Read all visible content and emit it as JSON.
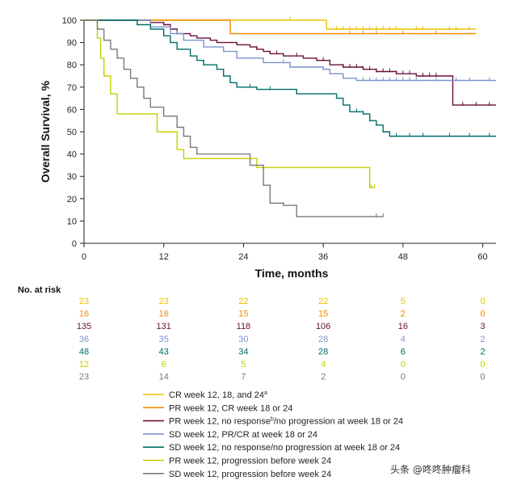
{
  "chart_data": {
    "type": "line",
    "subtype": "kaplan-meier",
    "title": "",
    "xlabel": "Time, months",
    "ylabel": "Overall Survival, %",
    "xlim": [
      0,
      62
    ],
    "ylim": [
      0,
      100
    ],
    "xticks": [
      0,
      12,
      24,
      36,
      48,
      60
    ],
    "yticks": [
      0,
      10,
      20,
      30,
      40,
      50,
      60,
      70,
      80,
      90,
      100
    ],
    "grid": false,
    "risk_table_title": "No. at risk",
    "risk_times": [
      0,
      12,
      24,
      36,
      48,
      60
    ],
    "series": [
      {
        "name": "CR week 12, 18, and 24",
        "superscript": "a",
        "color": "#e8c200",
        "steps": [
          [
            0,
            100
          ],
          [
            36.5,
            96
          ],
          [
            59,
            96
          ]
        ],
        "censor_times": [
          31,
          38,
          39,
          40,
          41,
          42,
          43,
          44,
          45,
          46,
          47,
          50,
          51,
          55,
          56,
          58
        ],
        "at_risk": [
          23,
          23,
          22,
          22,
          5,
          0
        ]
      },
      {
        "name": "PR week 12, CR week 18 or 24",
        "superscript": "",
        "color": "#f08a00",
        "steps": [
          [
            0,
            100
          ],
          [
            22,
            94
          ],
          [
            59,
            94
          ]
        ],
        "censor_times": [
          40,
          42,
          44,
          48,
          53
        ],
        "at_risk": [
          16,
          16,
          15,
          15,
          2,
          0
        ]
      },
      {
        "name": "PR week 12, no response",
        "superscript": "b",
        "name_suffix": "/no progression at week 18 or 24",
        "color": "#6b0f3a",
        "steps": [
          [
            0,
            100
          ],
          [
            10,
            99
          ],
          [
            12,
            98
          ],
          [
            13,
            96
          ],
          [
            14,
            94
          ],
          [
            16,
            93
          ],
          [
            17,
            92
          ],
          [
            19,
            91
          ],
          [
            20,
            90
          ],
          [
            23,
            89
          ],
          [
            25,
            88
          ],
          [
            26,
            87
          ],
          [
            27,
            86
          ],
          [
            28,
            85
          ],
          [
            30,
            84
          ],
          [
            33,
            83
          ],
          [
            35,
            82
          ],
          [
            37,
            80
          ],
          [
            39,
            79
          ],
          [
            42,
            78
          ],
          [
            44,
            77
          ],
          [
            47,
            76
          ],
          [
            50,
            75
          ],
          [
            55.5,
            62
          ],
          [
            62,
            62
          ]
        ],
        "censor_times": [
          26,
          29,
          32,
          36,
          39,
          40,
          41,
          42,
          43,
          44,
          45,
          46,
          47,
          48,
          49,
          51,
          52,
          53,
          57,
          59,
          61
        ],
        "at_risk": [
          135,
          131,
          118,
          106,
          16,
          3
        ]
      },
      {
        "name": "SD week 12, PR/CR at week 18 or 24",
        "superscript": "",
        "color": "#7b93c9",
        "steps": [
          [
            0,
            100
          ],
          [
            10,
            97
          ],
          [
            13,
            94
          ],
          [
            15,
            91
          ],
          [
            18,
            88
          ],
          [
            21,
            86
          ],
          [
            23,
            83
          ],
          [
            27,
            81
          ],
          [
            31,
            79
          ],
          [
            36,
            78
          ],
          [
            37,
            76
          ],
          [
            39,
            74
          ],
          [
            41,
            73
          ],
          [
            62,
            73
          ]
        ],
        "censor_times": [
          14,
          21,
          30,
          36,
          42,
          43,
          44,
          45,
          46,
          47,
          48,
          49,
          50,
          53,
          56,
          58,
          61
        ],
        "at_risk": [
          36,
          35,
          30,
          28,
          4,
          2
        ]
      },
      {
        "name": "SD week 12, no response/no progression at week 18 or 24",
        "superscript": "",
        "color": "#006c6a",
        "steps": [
          [
            0,
            100
          ],
          [
            8,
            98
          ],
          [
            10,
            96
          ],
          [
            12,
            93
          ],
          [
            13,
            90
          ],
          [
            14,
            87
          ],
          [
            16,
            84
          ],
          [
            17,
            82
          ],
          [
            18,
            80
          ],
          [
            20,
            78
          ],
          [
            21,
            75
          ],
          [
            22,
            72
          ],
          [
            23,
            70
          ],
          [
            26,
            69
          ],
          [
            32,
            67
          ],
          [
            38,
            65
          ],
          [
            39,
            62
          ],
          [
            40,
            59
          ],
          [
            42,
            58
          ],
          [
            43,
            55
          ],
          [
            44,
            53
          ],
          [
            45,
            50
          ],
          [
            46,
            48
          ],
          [
            62,
            48
          ]
        ],
        "censor_times": [
          18,
          25,
          28,
          41,
          42,
          43,
          44,
          45,
          47,
          49,
          51,
          55,
          58,
          61
        ],
        "at_risk": [
          48,
          43,
          34,
          28,
          6,
          2
        ]
      },
      {
        "name": "PR week 12, progression before week 24",
        "superscript": "",
        "color": "#c5d000",
        "steps": [
          [
            0,
            100
          ],
          [
            2,
            92
          ],
          [
            2.5,
            83
          ],
          [
            3,
            75
          ],
          [
            4,
            67
          ],
          [
            5,
            58
          ],
          [
            11,
            50
          ],
          [
            14,
            42
          ],
          [
            15,
            38
          ],
          [
            26,
            34
          ],
          [
            43,
            25
          ],
          [
            43.7,
            25
          ]
        ],
        "censor_times": [
          43.2,
          43.7
        ],
        "at_risk": [
          12,
          6,
          5,
          4,
          0,
          0
        ]
      },
      {
        "name": "SD week 12, progression before week 24",
        "superscript": "",
        "color": "#7a7a7a",
        "steps": [
          [
            0,
            100
          ],
          [
            2,
            96
          ],
          [
            3,
            91
          ],
          [
            4,
            87
          ],
          [
            5,
            83
          ],
          [
            6,
            78
          ],
          [
            7,
            74
          ],
          [
            8,
            70
          ],
          [
            9,
            65
          ],
          [
            10,
            61
          ],
          [
            12,
            57
          ],
          [
            14,
            52
          ],
          [
            15,
            48
          ],
          [
            16,
            43
          ],
          [
            17,
            40
          ],
          [
            25,
            35
          ],
          [
            27,
            26
          ],
          [
            28,
            18
          ],
          [
            30,
            17
          ],
          [
            32,
            12
          ],
          [
            45,
            12
          ]
        ],
        "censor_times": [
          30,
          44,
          45
        ],
        "at_risk": [
          23,
          14,
          7,
          2,
          0,
          0
        ]
      }
    ]
  },
  "watermark": {
    "text": "头条 @咚咚肿瘤科"
  }
}
